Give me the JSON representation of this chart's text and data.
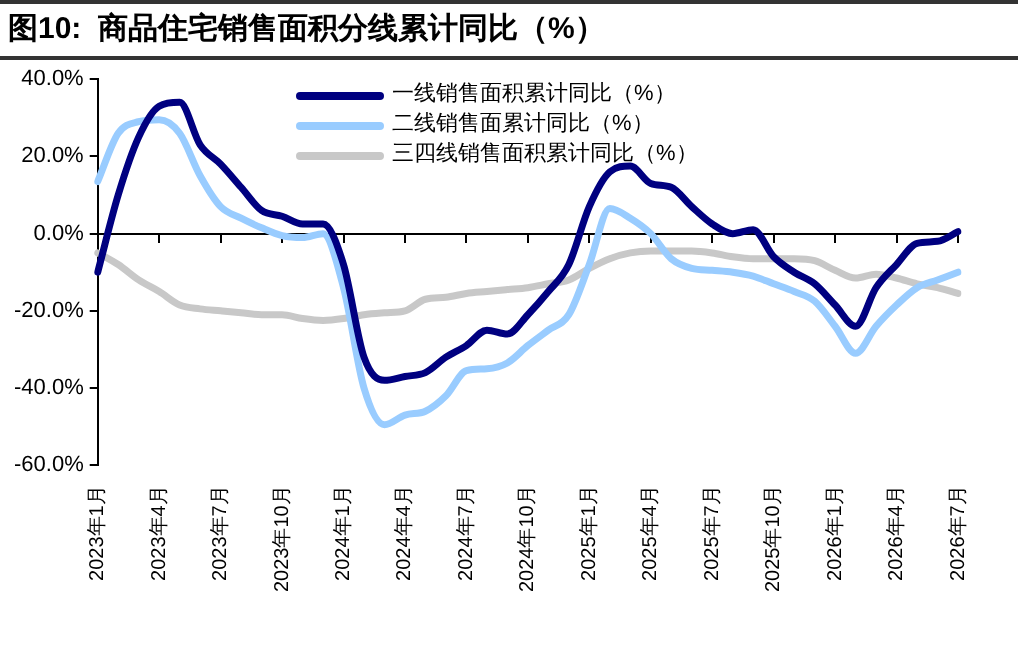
{
  "chart_data": {
    "type": "line",
    "title": "图10:  商品住宅销售面积分线累计同比（%）",
    "categories": [
      "2023年1月",
      null,
      null,
      "2023年4月",
      null,
      null,
      "2023年7月",
      null,
      null,
      "2023年10月",
      null,
      null,
      "2024年1月",
      null,
      null,
      "2024年4月",
      null,
      null,
      "2024年7月",
      null,
      null,
      "2024年10月",
      null,
      null,
      "2025年1月",
      null,
      null,
      "2025年4月",
      null,
      null,
      "2025年7月",
      null,
      null,
      "2025年10月",
      null,
      null,
      "2026年1月",
      null,
      null,
      "2026年4月",
      null,
      null,
      "2026年7月"
    ],
    "series": [
      {
        "name": "一线销售面积累计同比（%）",
        "color": "#000080",
        "values": [
          -10,
          10,
          25,
          33,
          34,
          23,
          18,
          12,
          6,
          4.5,
          2.5,
          2.5,
          -8,
          -32,
          -38,
          -37,
          -36,
          -32,
          -29,
          -25,
          -26,
          -21,
          -15,
          -8,
          7,
          16,
          17.5,
          13,
          12,
          7,
          2.5,
          0,
          1,
          -6,
          -10,
          -13,
          -18.5,
          -24,
          -14,
          -8,
          -2.5,
          -2,
          0.5
        ]
      },
      {
        "name": "二线销售面累计同比（%）",
        "color": "#99ccff",
        "values": [
          13.5,
          26,
          29,
          29.5,
          26,
          15,
          7,
          4,
          1.5,
          -0.5,
          -1,
          0,
          -14,
          -40,
          -49.5,
          -47,
          -46,
          -42,
          -35.5,
          -35,
          -33.5,
          -29,
          -25,
          -21,
          -8,
          6.5,
          4,
          0,
          -6.5,
          -9,
          -9.5,
          -10,
          -11,
          -13,
          -15,
          -17.5,
          -24,
          -31,
          -24,
          -18.5,
          -14,
          -12,
          -10
        ]
      },
      {
        "name": "三四线销售面积累计同比（%）",
        "color": "#c8c8c8",
        "values": [
          -5,
          -8,
          -12,
          -15,
          -18.5,
          -19.5,
          -20,
          -20.5,
          -21,
          -21,
          -22,
          -22.5,
          -22,
          -21,
          -20.5,
          -20,
          -17,
          -16.5,
          -15.5,
          -15,
          -14.5,
          -14,
          -13,
          -12,
          -9,
          -6.5,
          -5,
          -4.5,
          -4.5,
          -4.5,
          -5,
          -6,
          -6.5,
          -6.5,
          -6.5,
          -7,
          -9.5,
          -11.5,
          -10.5,
          -11.5,
          -13,
          -14,
          -15.5
        ]
      }
    ],
    "ylim": [
      -60,
      40
    ],
    "yticks": [
      {
        "value": -60,
        "label": "-60.0%"
      },
      {
        "value": -40,
        "label": "-40.0%"
      },
      {
        "value": -20,
        "label": "-20.0%"
      },
      {
        "value": 0,
        "label": "0.0%"
      },
      {
        "value": 20,
        "label": "20.0%"
      },
      {
        "value": 40,
        "label": "40.0%"
      }
    ],
    "legend": "top",
    "marker": "none",
    "line_style": "solid"
  }
}
